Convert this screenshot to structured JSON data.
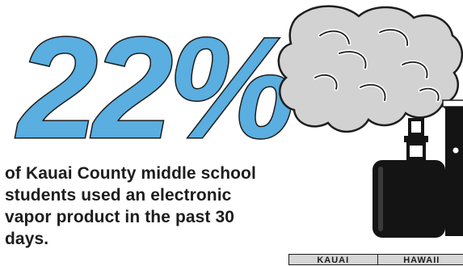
{
  "stat": {
    "value": "22%",
    "caption": "of Kauai County middle school students used an electronic vapor product in the past 30 days."
  },
  "table": {
    "headers": [
      "KAUAI",
      "HAWAII"
    ]
  },
  "colors": {
    "stat_fill": "#5aaee0",
    "stat_outline": "#1d1d1d",
    "text": "#1d1d1d",
    "cloud": "#d2d2d2",
    "device": "#141414"
  },
  "icons": [
    "vapor-cloud-icon",
    "box-mod-vape-icon",
    "vape-pen-icon"
  ]
}
